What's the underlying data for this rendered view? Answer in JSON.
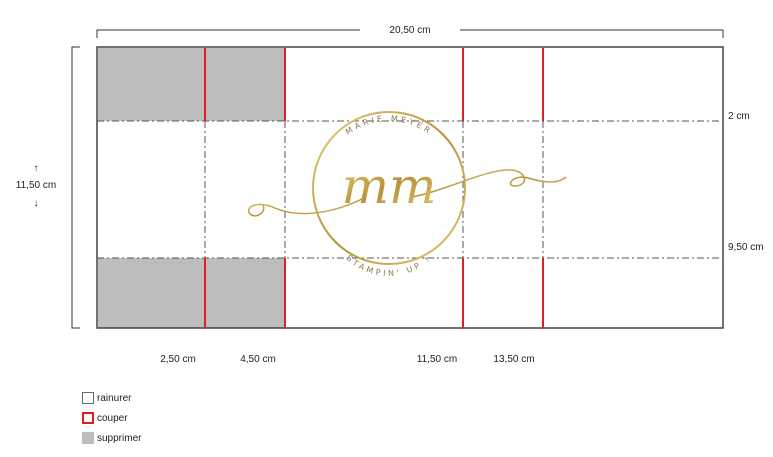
{
  "dimensions": {
    "width": "20,50 cm",
    "height": "11,50 cm",
    "height_arrow_up": "↑",
    "height_arrow_down": "↓"
  },
  "horizontal_marks": [
    "2 cm",
    "9,50 cm"
  ],
  "vertical_marks": [
    "2,50 cm",
    "4,50 cm",
    "11,50 cm",
    "13,50 cm"
  ],
  "logo": {
    "initials": "mm",
    "ring_text_top": "MARIE MEYER",
    "ring_text_bottom": "STAMPIN' UP !"
  },
  "legend": [
    {
      "label": "rainurer",
      "kind": "crease"
    },
    {
      "label": "couper",
      "kind": "cut"
    },
    {
      "label": "supprimer",
      "kind": "remove"
    }
  ],
  "colors": {
    "cut_line": "#e02020",
    "crease_line": "#555555",
    "removed_area": "#bdbdbd",
    "logo_gold": "#c9a84a"
  }
}
